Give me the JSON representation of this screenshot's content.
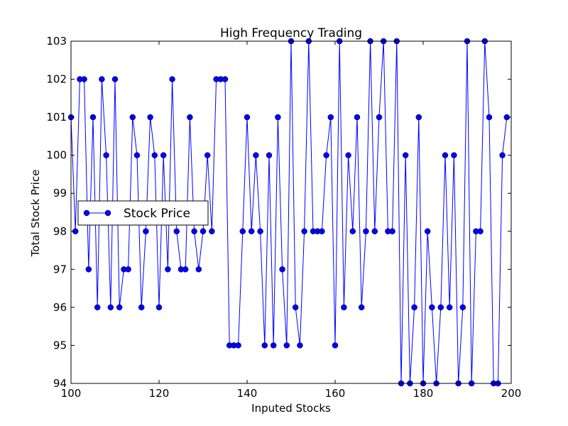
{
  "chart_data": {
    "type": "line",
    "title": "High Frequency Trading",
    "xlabel": "Inputed Stocks",
    "ylabel": "Total Stock Price",
    "xlim": [
      100,
      200
    ],
    "ylim": [
      94,
      103
    ],
    "xticks": [
      100,
      120,
      140,
      160,
      180,
      200
    ],
    "yticks": [
      94,
      95,
      96,
      97,
      98,
      99,
      100,
      101,
      102,
      103
    ],
    "grid": false,
    "legend_position": "center-left",
    "series": [
      {
        "name": "Stock Price",
        "color": "#0000ff",
        "marker": "circle",
        "x_start": 100,
        "values": [
          101,
          98,
          102,
          102,
          97,
          101,
          96,
          102,
          100,
          96,
          102,
          96,
          97,
          97,
          101,
          100,
          96,
          98,
          101,
          100,
          96,
          100,
          97,
          102,
          98,
          97,
          97,
          101,
          98,
          97,
          98,
          100,
          98,
          102,
          102,
          102,
          95,
          95,
          95,
          98,
          101,
          98,
          100,
          98,
          95,
          100,
          95,
          101,
          97,
          95,
          103,
          96,
          95,
          98,
          103,
          98,
          98,
          98,
          100,
          101,
          95,
          103,
          96,
          100,
          98,
          101,
          96,
          98,
          103,
          98,
          101,
          103,
          98,
          98,
          103,
          94,
          100,
          94,
          96,
          101,
          94,
          98,
          96,
          94,
          96,
          100,
          96,
          100,
          94,
          96,
          103,
          94,
          98,
          98,
          103,
          101,
          94,
          94,
          100,
          101
        ]
      }
    ]
  }
}
